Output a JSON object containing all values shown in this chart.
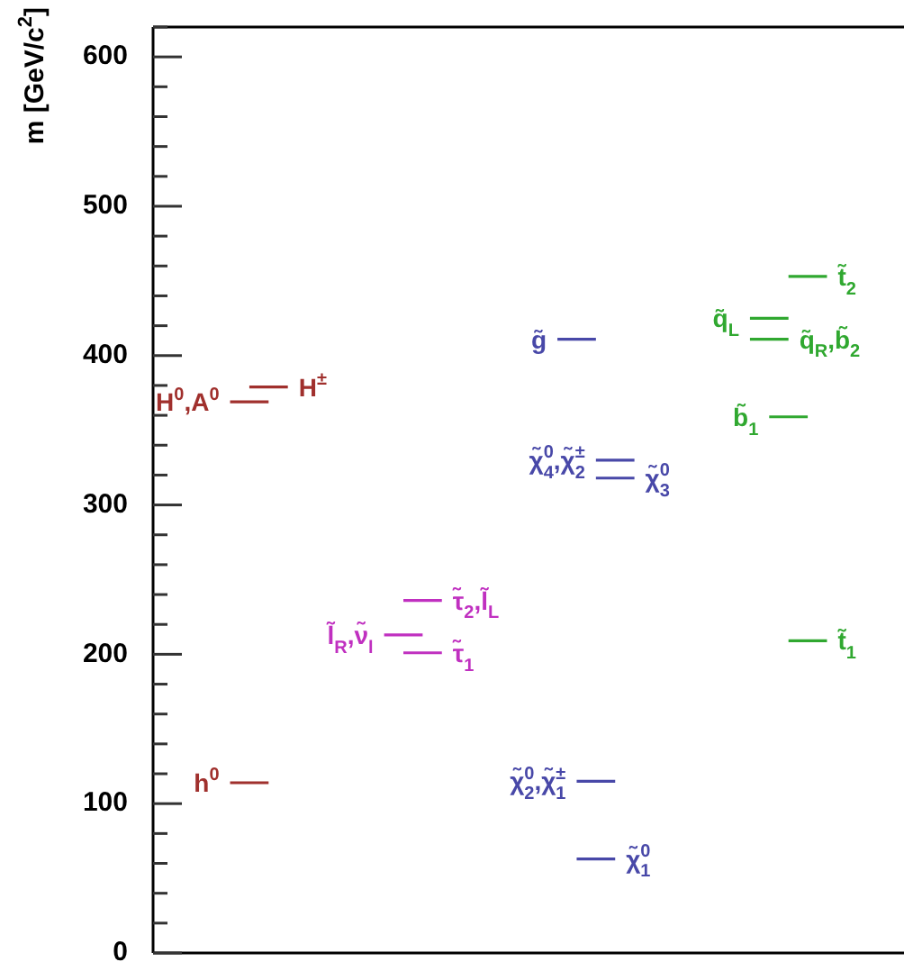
{
  "chart_data": {
    "type": "line",
    "ylabel": "m [GeV/c$^{2}$]",
    "ylim": [
      0,
      620
    ],
    "yticks": [
      0,
      {
        "value": 20,
        "label": null
      },
      {
        "value": 40,
        "label": null
      },
      {
        "value": 60,
        "label": null
      },
      {
        "value": 80,
        "label": null
      },
      100,
      {
        "value": 120,
        "label": null
      },
      {
        "value": 140,
        "label": null
      },
      {
        "value": 160,
        "label": null
      },
      {
        "value": 180,
        "label": null
      },
      200,
      {
        "value": 220,
        "label": null
      },
      {
        "value": 240,
        "label": null
      },
      {
        "value": 260,
        "label": null
      },
      {
        "value": 280,
        "label": null
      },
      300,
      {
        "value": 320,
        "label": null
      },
      {
        "value": 340,
        "label": null
      },
      {
        "value": 360,
        "label": null
      },
      {
        "value": 380,
        "label": null
      },
      400,
      {
        "value": 420,
        "label": null
      },
      {
        "value": 440,
        "label": null
      },
      {
        "value": 460,
        "label": null
      },
      {
        "value": 480,
        "label": null
      },
      500,
      {
        "value": 520,
        "label": null
      },
      {
        "value": 540,
        "label": null
      },
      {
        "value": 560,
        "label": null
      },
      {
        "value": 580,
        "label": null
      },
      600,
      {
        "value": 620,
        "label": null
      }
    ],
    "grid": false,
    "legend": false,
    "marker": "none",
    "line_style": "solid",
    "categories": [
      null,
      null,
      null,
      null,
      null,
      null,
      null,
      null,
      null,
      null,
      null,
      null,
      null,
      null,
      null,
      null,
      null,
      null,
      null,
      null,
      null,
      null,
      null,
      null,
      null,
      null,
      null,
      null,
      null,
      null,
      null,
      null,
      null,
      null,
      null,
      null,
      null,
      null,
      null,
      null
    ],
    "series": [
      {
        "name": "h$^{0}$",
        "color": "#a0302d",
        "values": [
          null,
          null,
          null,
          null,
          114,
          114,
          114,
          null,
          null,
          null,
          null,
          null,
          null,
          null,
          null,
          null,
          null,
          null,
          null,
          null,
          null,
          null,
          null,
          null,
          null,
          null,
          null,
          null,
          null,
          null,
          null,
          null,
          null,
          null,
          null,
          null,
          null,
          null,
          null,
          null
        ]
      },
      {
        "name": "H$^{0}$,A$^{0}$",
        "color": "#a0302d",
        "values": [
          null,
          null,
          null,
          null,
          369,
          369,
          369,
          null,
          null,
          null,
          null,
          null,
          null,
          null,
          null,
          null,
          null,
          null,
          null,
          null,
          null,
          null,
          null,
          null,
          null,
          null,
          null,
          null,
          null,
          null,
          null,
          null,
          null,
          null,
          null,
          null,
          null,
          null,
          null,
          null
        ]
      },
      {
        "name": "H$^{±}$",
        "color": "#a0302d",
        "values": [
          null,
          null,
          null,
          null,
          null,
          379,
          379,
          379,
          null,
          null,
          null,
          null,
          null,
          null,
          null,
          null,
          null,
          null,
          null,
          null,
          null,
          null,
          null,
          null,
          null,
          null,
          null,
          null,
          null,
          null,
          null,
          null,
          null,
          null,
          null,
          null,
          null,
          null,
          null,
          null
        ]
      },
      {
        "name": "l̃$_{R}$,ν̃$_{l}$",
        "color": "#c030c0",
        "values": [
          null,
          null,
          null,
          null,
          null,
          null,
          null,
          null,
          null,
          null,
          null,
          null,
          213,
          213,
          213,
          null,
          null,
          null,
          null,
          null,
          null,
          null,
          null,
          null,
          null,
          null,
          null,
          null,
          null,
          null,
          null,
          null,
          null,
          null,
          null,
          null,
          null,
          null,
          null,
          null
        ]
      },
      {
        "name": "τ̃$_{2}$,l̃$_{L}$",
        "color": "#c030c0",
        "values": [
          null,
          null,
          null,
          null,
          null,
          null,
          null,
          null,
          null,
          null,
          null,
          null,
          null,
          236,
          236,
          236,
          null,
          null,
          null,
          null,
          null,
          null,
          null,
          null,
          null,
          null,
          null,
          null,
          null,
          null,
          null,
          null,
          null,
          null,
          null,
          null,
          null,
          null,
          null,
          null
        ]
      },
      {
        "name": "τ̃$_{1}$",
        "color": "#c030c0",
        "values": [
          null,
          null,
          null,
          null,
          null,
          null,
          null,
          null,
          null,
          null,
          null,
          null,
          null,
          201,
          201,
          201,
          null,
          null,
          null,
          null,
          null,
          null,
          null,
          null,
          null,
          null,
          null,
          null,
          null,
          null,
          null,
          null,
          null,
          null,
          null,
          null,
          null,
          null,
          null,
          null
        ]
      },
      {
        "name": "g̃",
        "color": "#4848a8",
        "values": [
          null,
          null,
          null,
          null,
          null,
          null,
          null,
          null,
          null,
          null,
          null,
          null,
          null,
          null,
          null,
          null,
          null,
          null,
          null,
          null,
          null,
          411,
          411,
          411,
          null,
          null,
          null,
          null,
          null,
          null,
          null,
          null,
          null,
          null,
          null,
          null,
          null,
          null,
          null,
          null
        ]
      },
      {
        "name": "χ̃$_{4}$$^{0}$,χ̃$_{2}$$^{±}$",
        "color": "#4848a8",
        "values": [
          null,
          null,
          null,
          null,
          null,
          null,
          null,
          null,
          null,
          null,
          null,
          null,
          null,
          null,
          null,
          null,
          null,
          null,
          null,
          null,
          null,
          null,
          null,
          330,
          330,
          330,
          null,
          null,
          null,
          null,
          null,
          null,
          null,
          null,
          null,
          null,
          null,
          null,
          null,
          null
        ]
      },
      {
        "name": "χ̃$_{3}$$^{0}$",
        "color": "#4848a8",
        "values": [
          null,
          null,
          null,
          null,
          null,
          null,
          null,
          null,
          null,
          null,
          null,
          null,
          null,
          null,
          null,
          null,
          null,
          null,
          null,
          null,
          null,
          null,
          null,
          318,
          318,
          318,
          null,
          null,
          null,
          null,
          null,
          null,
          null,
          null,
          null,
          null,
          null,
          null,
          null,
          null
        ]
      },
      {
        "name": "χ̃$_{2}$$^{0}$,χ̃$_{1}$$^{±}$",
        "color": "#4848a8",
        "values": [
          null,
          null,
          null,
          null,
          null,
          null,
          null,
          null,
          null,
          null,
          null,
          null,
          null,
          null,
          null,
          null,
          null,
          null,
          null,
          null,
          null,
          null,
          115,
          115,
          115,
          null,
          null,
          null,
          null,
          null,
          null,
          null,
          null,
          null,
          null,
          null,
          null,
          null,
          null,
          null
        ]
      },
      {
        "name": "χ̃$_{1}$$^{0}$",
        "color": "#4848a8",
        "values": [
          null,
          null,
          null,
          null,
          null,
          null,
          null,
          null,
          null,
          null,
          null,
          null,
          null,
          null,
          null,
          null,
          null,
          null,
          null,
          null,
          null,
          null,
          63,
          63,
          63,
          null,
          null,
          null,
          null,
          null,
          null,
          null,
          null,
          null,
          null,
          null,
          null,
          null,
          null,
          null
        ]
      },
      {
        "name": "t̃$_{2}$",
        "color": "#30a830",
        "values": [
          null,
          null,
          null,
          null,
          null,
          null,
          null,
          null,
          null,
          null,
          null,
          null,
          null,
          null,
          null,
          null,
          null,
          null,
          null,
          null,
          null,
          null,
          null,
          null,
          null,
          null,
          null,
          null,
          null,
          null,
          null,
          null,
          null,
          453,
          453,
          453,
          null,
          null,
          null,
          null
        ]
      },
      {
        "name": "q̃$_{L}$",
        "color": "#30a830",
        "values": [
          null,
          null,
          null,
          null,
          null,
          null,
          null,
          null,
          null,
          null,
          null,
          null,
          null,
          null,
          null,
          null,
          null,
          null,
          null,
          null,
          null,
          null,
          null,
          null,
          null,
          null,
          null,
          null,
          null,
          null,
          null,
          425,
          425,
          425,
          null,
          null,
          null,
          null,
          null,
          null
        ]
      },
      {
        "name": "q̃$_{R}$,b̃$_{2}$",
        "color": "#30a830",
        "values": [
          null,
          null,
          null,
          null,
          null,
          null,
          null,
          null,
          null,
          null,
          null,
          null,
          null,
          null,
          null,
          null,
          null,
          null,
          null,
          null,
          null,
          null,
          null,
          null,
          null,
          null,
          null,
          null,
          null,
          null,
          null,
          411,
          411,
          411,
          null,
          null,
          null,
          null,
          null,
          null
        ]
      },
      {
        "name": "b̃$_{1}$",
        "color": "#30a830",
        "values": [
          null,
          null,
          null,
          null,
          null,
          null,
          null,
          null,
          null,
          null,
          null,
          null,
          null,
          null,
          null,
          null,
          null,
          null,
          null,
          null,
          null,
          null,
          null,
          null,
          null,
          null,
          null,
          null,
          null,
          null,
          null,
          null,
          359,
          359,
          359,
          null,
          null,
          null,
          null,
          null
        ]
      },
      {
        "name": "t̃$_{1}$",
        "color": "#30a830",
        "values": [
          null,
          null,
          null,
          null,
          null,
          null,
          null,
          null,
          null,
          null,
          null,
          null,
          null,
          null,
          null,
          null,
          null,
          null,
          null,
          null,
          null,
          null,
          null,
          null,
          null,
          null,
          null,
          null,
          null,
          null,
          null,
          null,
          null,
          209,
          209,
          209,
          null,
          null,
          null,
          null
        ]
      }
    ]
  }
}
